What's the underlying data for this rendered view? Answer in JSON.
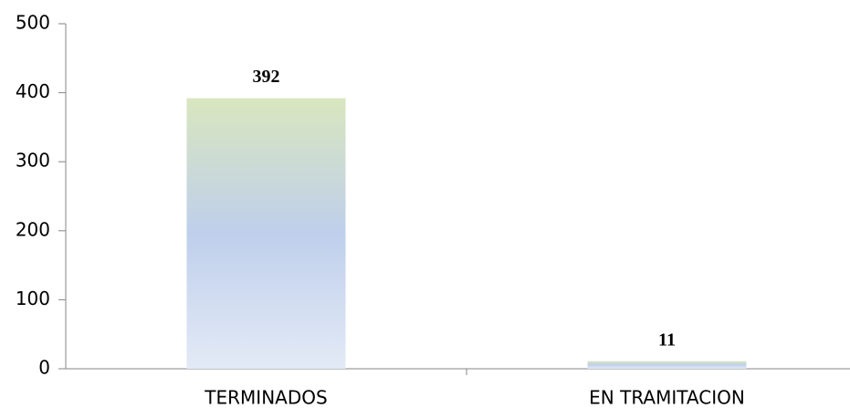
{
  "chart_data": {
    "type": "bar",
    "categories": [
      "TERMINADOS",
      "EN TRAMITACION"
    ],
    "values": [
      392,
      11
    ],
    "gradient": [
      "#d8e6bf",
      "#bfcfeb",
      "#e3eaf6"
    ],
    "ylim": [
      0,
      500
    ],
    "yticks": [
      0,
      100,
      200,
      300,
      400,
      500
    ],
    "grid": false
  }
}
